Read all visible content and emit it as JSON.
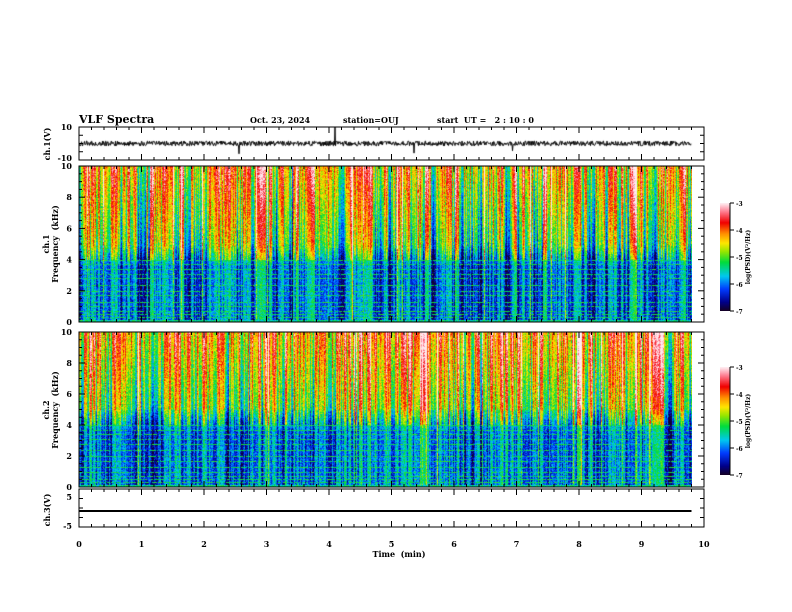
{
  "header": {
    "title": "VLF Spectra",
    "date": "Oct. 23, 2024",
    "station": "station=OUJ",
    "start": "start  UT =   2 : 10 : 0"
  },
  "chart_data": [
    {
      "type": "line",
      "name": "ch1-waveform",
      "ylabel": "ch.1(V)",
      "ylim": [
        -10,
        10
      ],
      "yticks": [
        "10",
        "-10"
      ],
      "xlim": [
        0,
        10
      ],
      "data_end_min": 9.8,
      "baseline": 0,
      "noise_amplitude": 1.5
    },
    {
      "type": "heatmap",
      "name": "ch1-spectrogram",
      "ylabel": "ch.1\nFrequency (kHz)",
      "ylabel_lines": [
        "ch.1",
        "Frequency  (kHz)"
      ],
      "ylim": [
        0,
        10
      ],
      "yticks": [
        "0",
        "2",
        "4",
        "6",
        "8",
        "10"
      ],
      "xlim": [
        0,
        10
      ],
      "colorbar": {
        "label": "log(PSD)(V²/Hz)",
        "range": [
          -7,
          -3
        ],
        "ticks": [
          "-3",
          "-4",
          "-5",
          "-6",
          "-7"
        ]
      }
    },
    {
      "type": "heatmap",
      "name": "ch2-spectrogram",
      "ylabel_lines": [
        "ch.2",
        "Frequency  (kHz)"
      ],
      "ylim": [
        0,
        10
      ],
      "yticks": [
        "0",
        "2",
        "4",
        "6",
        "8",
        "10"
      ],
      "xlim": [
        0,
        10
      ],
      "colorbar": {
        "label": "log(PSD)(V²/Hz)",
        "range": [
          -7,
          -3
        ],
        "ticks": [
          "-3",
          "-4",
          "-5",
          "-6",
          "-7"
        ]
      }
    },
    {
      "type": "line",
      "name": "ch3-waveform",
      "ylabel": "ch.3(V)",
      "ylim": [
        -5,
        5
      ],
      "yticks": [
        "5",
        "-5"
      ],
      "xlim": [
        0,
        10
      ],
      "data_end_min": 9.8,
      "constant_value": -0.8
    }
  ],
  "xaxis": {
    "label": "Time  (min)",
    "ticks": [
      "0",
      "1",
      "2",
      "3",
      "4",
      "5",
      "6",
      "7",
      "8",
      "9",
      "10"
    ]
  },
  "colors": {
    "axis": "#000000",
    "trace": "#000000"
  }
}
